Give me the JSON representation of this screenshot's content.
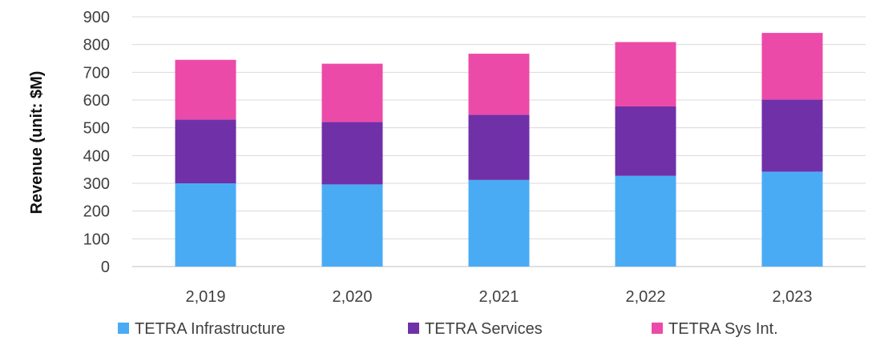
{
  "chart_data": {
    "type": "bar",
    "stacked": true,
    "categories": [
      "2,019",
      "2,020",
      "2,021",
      "2,022",
      "2,023"
    ],
    "series": [
      {
        "name": "TETRA Infrastructure",
        "color": "#4aabf5",
        "values": [
          300,
          296,
          312,
          327,
          342
        ]
      },
      {
        "name": "TETRA Services",
        "color": "#7030a8",
        "values": [
          230,
          225,
          235,
          250,
          260
        ]
      },
      {
        "name": "TETRA Sys Int.",
        "color": "#ec4aa8",
        "values": [
          215,
          210,
          220,
          232,
          240
        ]
      }
    ],
    "ylabel": "Revenue (unit: $M)",
    "ylim": [
      0,
      900
    ],
    "yticks": [
      "0",
      "100",
      "200",
      "300",
      "400",
      "500",
      "600",
      "700",
      "800",
      "900"
    ],
    "grid": true,
    "legend_position": "bottom"
  }
}
